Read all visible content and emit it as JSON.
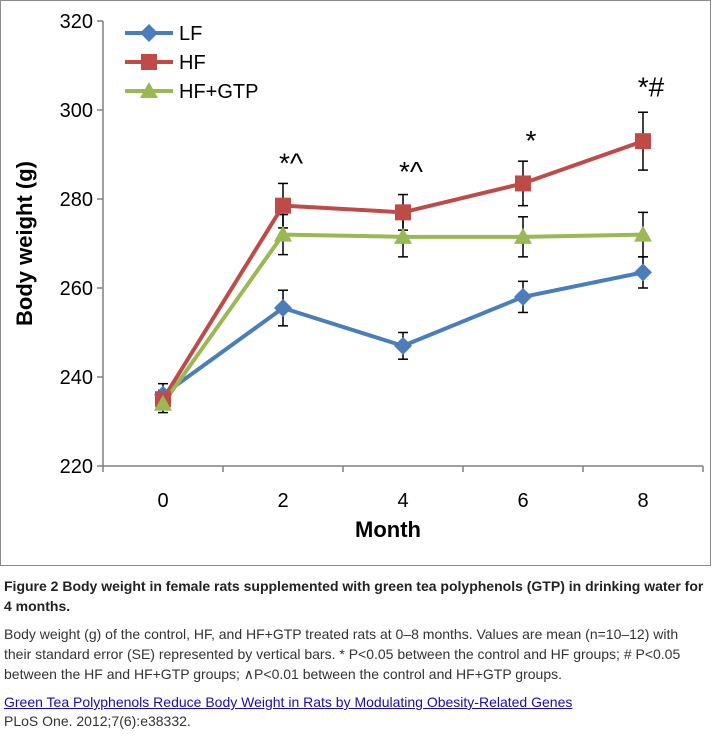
{
  "chart_data": {
    "type": "line",
    "title": "",
    "xlabel": "Month",
    "ylabel": "Body weight (g)",
    "x": [
      0,
      2,
      4,
      6,
      8
    ],
    "xticks": [
      "0",
      "2",
      "4",
      "6",
      "8"
    ],
    "ylim": [
      220,
      320
    ],
    "yticks": [
      "220",
      "240",
      "260",
      "280",
      "300",
      "320"
    ],
    "grid": false,
    "legend_position": "top-left",
    "series": [
      {
        "name": "LF",
        "color": "#4a7ebb",
        "marker": "diamond",
        "values": [
          236,
          255.5,
          247,
          258,
          263.5
        ],
        "errors": [
          2.5,
          4,
          3,
          3.5,
          3.5
        ]
      },
      {
        "name": "HF",
        "color": "#be4b48",
        "marker": "square",
        "values": [
          235,
          278.5,
          277,
          283.5,
          293
        ],
        "errors": [
          2,
          5,
          4,
          5,
          6.5
        ]
      },
      {
        "name": "HF+GTP",
        "color": "#98b954",
        "marker": "triangle",
        "values": [
          234,
          272,
          271.5,
          271.5,
          272
        ],
        "errors": [
          2,
          4.5,
          4.5,
          4.5,
          5
        ]
      }
    ],
    "annotations": [
      {
        "x": 2,
        "y": 286,
        "text": "*^"
      },
      {
        "x": 4,
        "y": 284,
        "text": "*^"
      },
      {
        "x": 6,
        "y": 291,
        "text": "*"
      },
      {
        "x": 8,
        "y": 303,
        "text": "*#"
      }
    ]
  },
  "caption": {
    "title": "Figure 2   Body weight in female rats supplemented with green tea polyphenols (GTP) in drinking water for 4 months.",
    "body": "Body weight (g) of the control, HF, and HF+GTP treated rats at 0–8 months. Values are mean (n=10–12) with their standard error (SE) represented by vertical bars. * P<0.05 between the control and HF groups; # P<0.05 between the HF and HF+GTP groups; ∧P<0.01 between the control and HF+GTP groups.",
    "link_text": "Green Tea Polyphenols Reduce Body Weight in Rats by Modulating Obesity-Related Genes",
    "journal": "PLoS One. 2012;7(6):e38332."
  }
}
